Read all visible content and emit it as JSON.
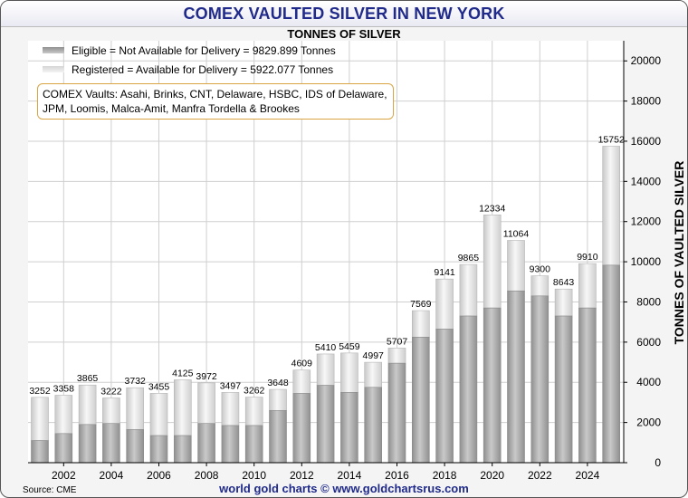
{
  "header": {
    "title": "COMEX VAULTED SILVER IN NEW YORK",
    "subtitle": "TONNES OF SILVER"
  },
  "legend": {
    "eligible": "Eligible = Not Available for Delivery = 9829.899 Tonnes",
    "registered": "Registered = Available for Delivery = 5922.077 Tonnes"
  },
  "annotation": "COMEX Vaults: Asahi, Brinks, CNT, Delaware, HSBC, IDS of Delaware, JPM, Loomis, Malca-Amit, Manfra Tordella & Brookes",
  "footer": {
    "source": "Source: CME",
    "credit": "world gold charts © www.goldchartsrus.com"
  },
  "colors": {
    "title": "#1f2a8a",
    "eligible": "#a9a9a9",
    "registered": "#e6e6e6",
    "grid": "#cfcfcf"
  },
  "chart_data": {
    "type": "bar",
    "stacked": true,
    "title": "COMEX VAULTED SILVER IN NEW YORK",
    "subtitle": "TONNES OF SILVER",
    "ylabel": "TONNES OF VAULTED SILVER",
    "xlabel": "",
    "y_axis_side": "right",
    "ylim": [
      0,
      21000
    ],
    "yticks": [
      0,
      2000,
      4000,
      6000,
      8000,
      10000,
      12000,
      14000,
      16000,
      18000,
      20000
    ],
    "xticks": [
      2002,
      2004,
      2006,
      2008,
      2010,
      2012,
      2014,
      2016,
      2018,
      2020,
      2022,
      2024
    ],
    "grid": true,
    "legend_position": "top-left",
    "categories": [
      2001,
      2002,
      2003,
      2004,
      2005,
      2006,
      2007,
      2008,
      2009,
      2010,
      2011,
      2012,
      2013,
      2014,
      2015,
      2016,
      2017,
      2018,
      2019,
      2020,
      2021,
      2022,
      2023,
      2024,
      2025
    ],
    "totals": [
      3252,
      3358,
      3865,
      3222,
      3732,
      3455,
      4125,
      3972,
      3497,
      3262,
      3648,
      4609,
      5410,
      5459,
      4997,
      5707,
      7569,
      9141,
      9865,
      12334,
      11064,
      9300,
      8643,
      9910,
      15752
    ],
    "series": [
      {
        "name": "Eligible",
        "values": [
          1100,
          1450,
          1900,
          1950,
          1650,
          1350,
          1350,
          1950,
          1850,
          1850,
          2600,
          3450,
          3850,
          3500,
          3750,
          4950,
          6250,
          6650,
          7300,
          7700,
          8550,
          8300,
          7300,
          7700,
          9830
        ]
      },
      {
        "name": "Registered",
        "values": [
          2152,
          1908,
          1965,
          1272,
          2082,
          2105,
          2775,
          2022,
          1647,
          1412,
          1048,
          1159,
          1560,
          1959,
          1247,
          757,
          1319,
          2491,
          2565,
          4634,
          2514,
          1000,
          1343,
          2210,
          5922
        ]
      }
    ]
  }
}
